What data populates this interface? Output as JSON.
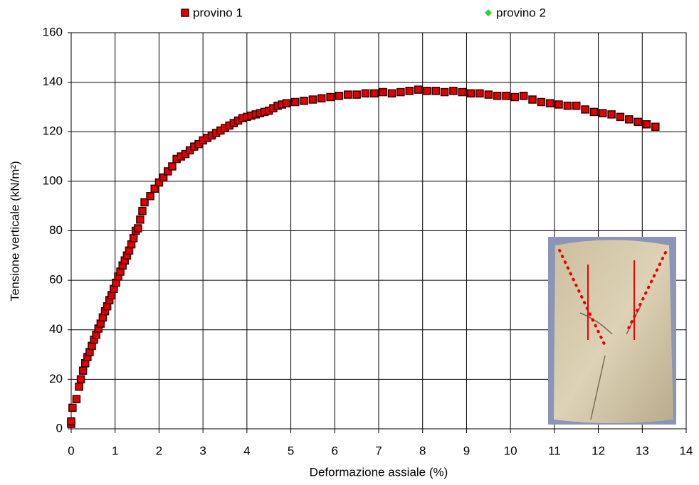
{
  "chart_data": {
    "type": "scatter",
    "xlabel": "Deformazione assiale (%)",
    "ylabel": "Tensione verticale (kN/m²)",
    "xlim": [
      0,
      14
    ],
    "ylim": [
      0,
      160
    ],
    "xticks": [
      0,
      1,
      2,
      3,
      4,
      5,
      6,
      7,
      8,
      9,
      10,
      11,
      12,
      13,
      14
    ],
    "yticks": [
      0,
      20,
      40,
      60,
      80,
      100,
      120,
      140,
      160
    ],
    "grid": true,
    "legend": "top",
    "series": [
      {
        "name": "provino 1",
        "color": "#e00000",
        "marker": "square",
        "x": [
          0,
          0,
          0.03,
          0.12,
          0.18,
          0.22,
          0.27,
          0.32,
          0.37,
          0.42,
          0.47,
          0.52,
          0.57,
          0.62,
          0.67,
          0.72,
          0.77,
          0.82,
          0.87,
          0.92,
          0.97,
          1.02,
          1.07,
          1.12,
          1.17,
          1.22,
          1.27,
          1.32,
          1.37,
          1.42,
          1.47,
          1.52,
          1.57,
          1.62,
          1.67,
          1.8,
          1.9,
          2.0,
          2.1,
          2.2,
          2.3,
          2.4,
          2.5,
          2.6,
          2.7,
          2.8,
          2.9,
          3.0,
          3.1,
          3.2,
          3.3,
          3.4,
          3.5,
          3.6,
          3.7,
          3.8,
          3.9,
          4.0,
          4.1,
          4.2,
          4.3,
          4.4,
          4.5,
          4.6,
          4.7,
          4.8,
          4.9,
          5.1,
          5.3,
          5.5,
          5.7,
          5.9,
          6.1,
          6.3,
          6.5,
          6.7,
          6.9,
          7.1,
          7.3,
          7.5,
          7.7,
          7.9,
          8.1,
          8.3,
          8.5,
          8.7,
          8.9,
          9.1,
          9.3,
          9.5,
          9.7,
          9.9,
          10.1,
          10.3,
          10.5,
          10.7,
          10.9,
          11.1,
          11.3,
          11.5,
          11.7,
          11.9,
          12.1,
          12.3,
          12.5,
          12.7,
          12.9,
          13.1,
          13.3
        ],
        "values": [
          2,
          3,
          8.5,
          12,
          17,
          20,
          23.5,
          26.5,
          29,
          31,
          33.5,
          36,
          38,
          40.5,
          42.5,
          45,
          47.5,
          49.5,
          52,
          54,
          56.5,
          59,
          61.5,
          63.5,
          66,
          68,
          70,
          72,
          74.5,
          77,
          80,
          81,
          84.5,
          88,
          91.5,
          94,
          97,
          99.5,
          101.5,
          104,
          106,
          109,
          110,
          111,
          112.5,
          114,
          115,
          116.5,
          117.5,
          118.5,
          119.5,
          120.5,
          121.5,
          122.5,
          123.5,
          124.5,
          125.5,
          126,
          126.5,
          127,
          127.5,
          128,
          128.5,
          129.5,
          130.5,
          131,
          131.5,
          132,
          132.5,
          133,
          133.5,
          134,
          134.5,
          135,
          135,
          135.5,
          135.5,
          136,
          135.5,
          136,
          136.5,
          137,
          136.5,
          136.5,
          136,
          136.5,
          136,
          135.5,
          135.5,
          135,
          134.5,
          134.5,
          134,
          134.5,
          133,
          132,
          131.5,
          131,
          130.5,
          130.5,
          129,
          128,
          127.5,
          127,
          126,
          125,
          124,
          123,
          122
        ]
      },
      {
        "name": "provino 2",
        "color": "#22dd22",
        "marker": "diamond",
        "x": [],
        "values": []
      }
    ]
  }
}
